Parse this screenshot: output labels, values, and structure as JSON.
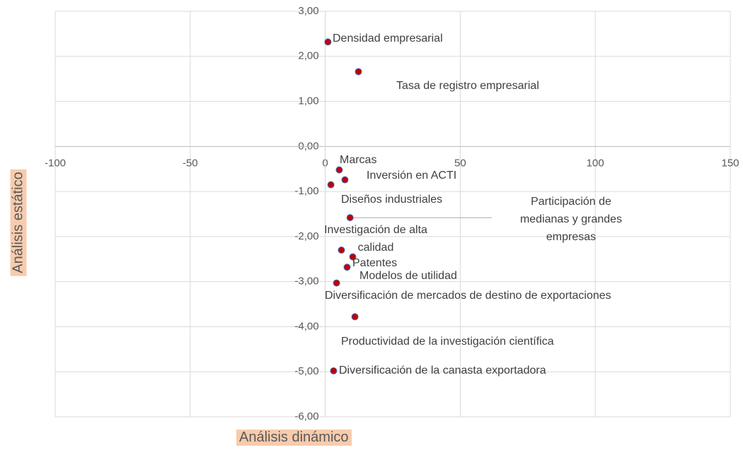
{
  "chart_data": {
    "type": "scatter",
    "x_label": "Análisis dinámico",
    "y_label": "Análisis estático",
    "xlim": [
      -100,
      150
    ],
    "xticks": [
      -100,
      -50,
      0,
      50,
      100,
      150
    ],
    "ylim": [
      -6,
      3
    ],
    "yticks": [
      {
        "value": 3,
        "label": "3,00"
      },
      {
        "value": 2,
        "label": "2,00"
      },
      {
        "value": 1,
        "label": "1,00"
      },
      {
        "value": 0,
        "label": "0,00"
      },
      {
        "value": -1,
        "label": "-1,00"
      },
      {
        "value": -2,
        "label": "-2,00"
      },
      {
        "value": -3,
        "label": "-3,00"
      },
      {
        "value": -4,
        "label": "-4,00"
      },
      {
        "value": -5,
        "label": "-5,00"
      },
      {
        "value": -6,
        "label": "-6,00"
      }
    ],
    "grid": true,
    "color": "#c00000",
    "points": [
      {
        "name": "Densidad empresarial",
        "x": 1.0,
        "y": 2.32
      },
      {
        "name": "Tasa de registro empresarial",
        "x": 12.3,
        "y": 1.66
      },
      {
        "name": "Marcas",
        "x": 5.2,
        "y": -0.52
      },
      {
        "name": "Inversión en ACTI",
        "x": 7.3,
        "y": -0.74
      },
      {
        "name": "Diseños industriales",
        "x": 2.1,
        "y": -0.85
      },
      {
        "name": "Participación de medianas y grandes empresas",
        "x": 9.2,
        "y": -1.58
      },
      {
        "name": "Investigación de alta calidad",
        "x": 6.0,
        "y": -2.3
      },
      {
        "name": "Patentes",
        "x": 10.2,
        "y": -2.45
      },
      {
        "name": "Modelos de utilidad",
        "x": 8.1,
        "y": -2.68
      },
      {
        "name": "Diversificación de mercados de destino de exportaciones",
        "x": 4.2,
        "y": -3.03
      },
      {
        "name": "Productividad de la investigación científica",
        "x": 11.0,
        "y": -3.78
      },
      {
        "name": "Diversificación de la canasta exportadora",
        "x": 3.1,
        "y": -4.98
      }
    ]
  }
}
